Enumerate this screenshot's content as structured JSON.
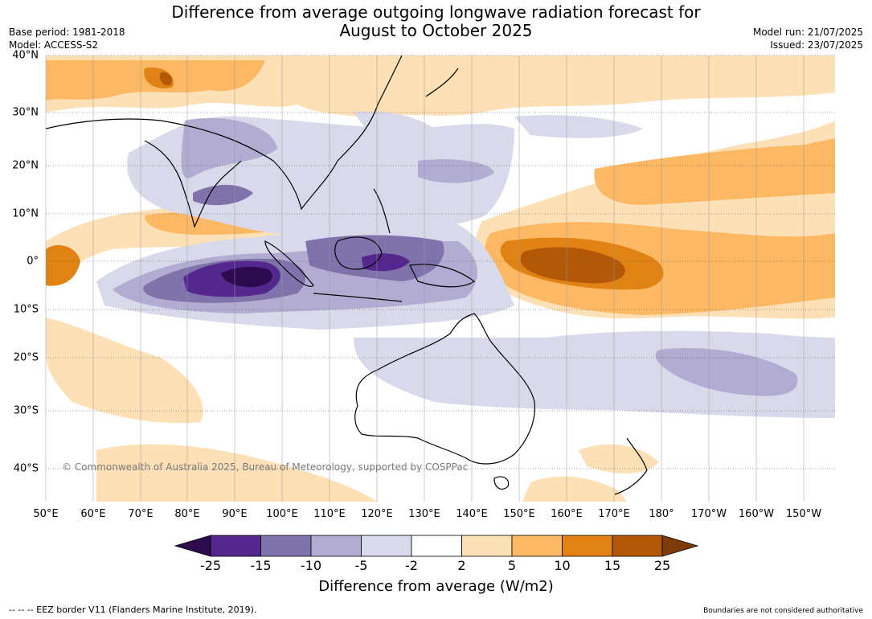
{
  "title_line1": "Difference from average outgoing longwave radiation forecast for",
  "title_line2": "August to October 2025",
  "base_period": "Base period: 1981-2018",
  "model": "Model: ACCESS-S2",
  "model_run": "Model run: 21/07/2025",
  "issued": "Issued: 23/07/2025",
  "lat_labels": [
    "40°N",
    "30°N",
    "20°N",
    "10°N",
    "0°",
    "10°S",
    "20°S",
    "30°S",
    "40°S"
  ],
  "lon_labels": [
    "50°E",
    "60°E",
    "70°E",
    "80°E",
    "90°E",
    "100°E",
    "110°E",
    "120°E",
    "130°E",
    "140°E",
    "150°E",
    "160°E",
    "170°E",
    "180°",
    "170°W",
    "160°W",
    "150°W"
  ],
  "copyright": "© Commonwealth of Australia 2025, Bureau of Meteorology, supported by COSPPac",
  "colorbar": {
    "ticks": [
      "-25",
      "-15",
      "-10",
      "-5",
      "-2",
      "2",
      "5",
      "10",
      "15",
      "25"
    ],
    "colors": [
      "#2d0a4e",
      "#54278f",
      "#8073ac",
      "#b2abd2",
      "#d8daeb",
      "#ffffff",
      "#fee0b6",
      "#fdb863",
      "#e08214",
      "#b35806",
      "#7f3b08"
    ],
    "title": "Difference from average (W/m2)"
  },
  "footer_left": "-- -- -- EEZ border V11 (Flanders Marine Institute, 2019).",
  "footer_right": "Boundaries are not considered authoritative"
}
